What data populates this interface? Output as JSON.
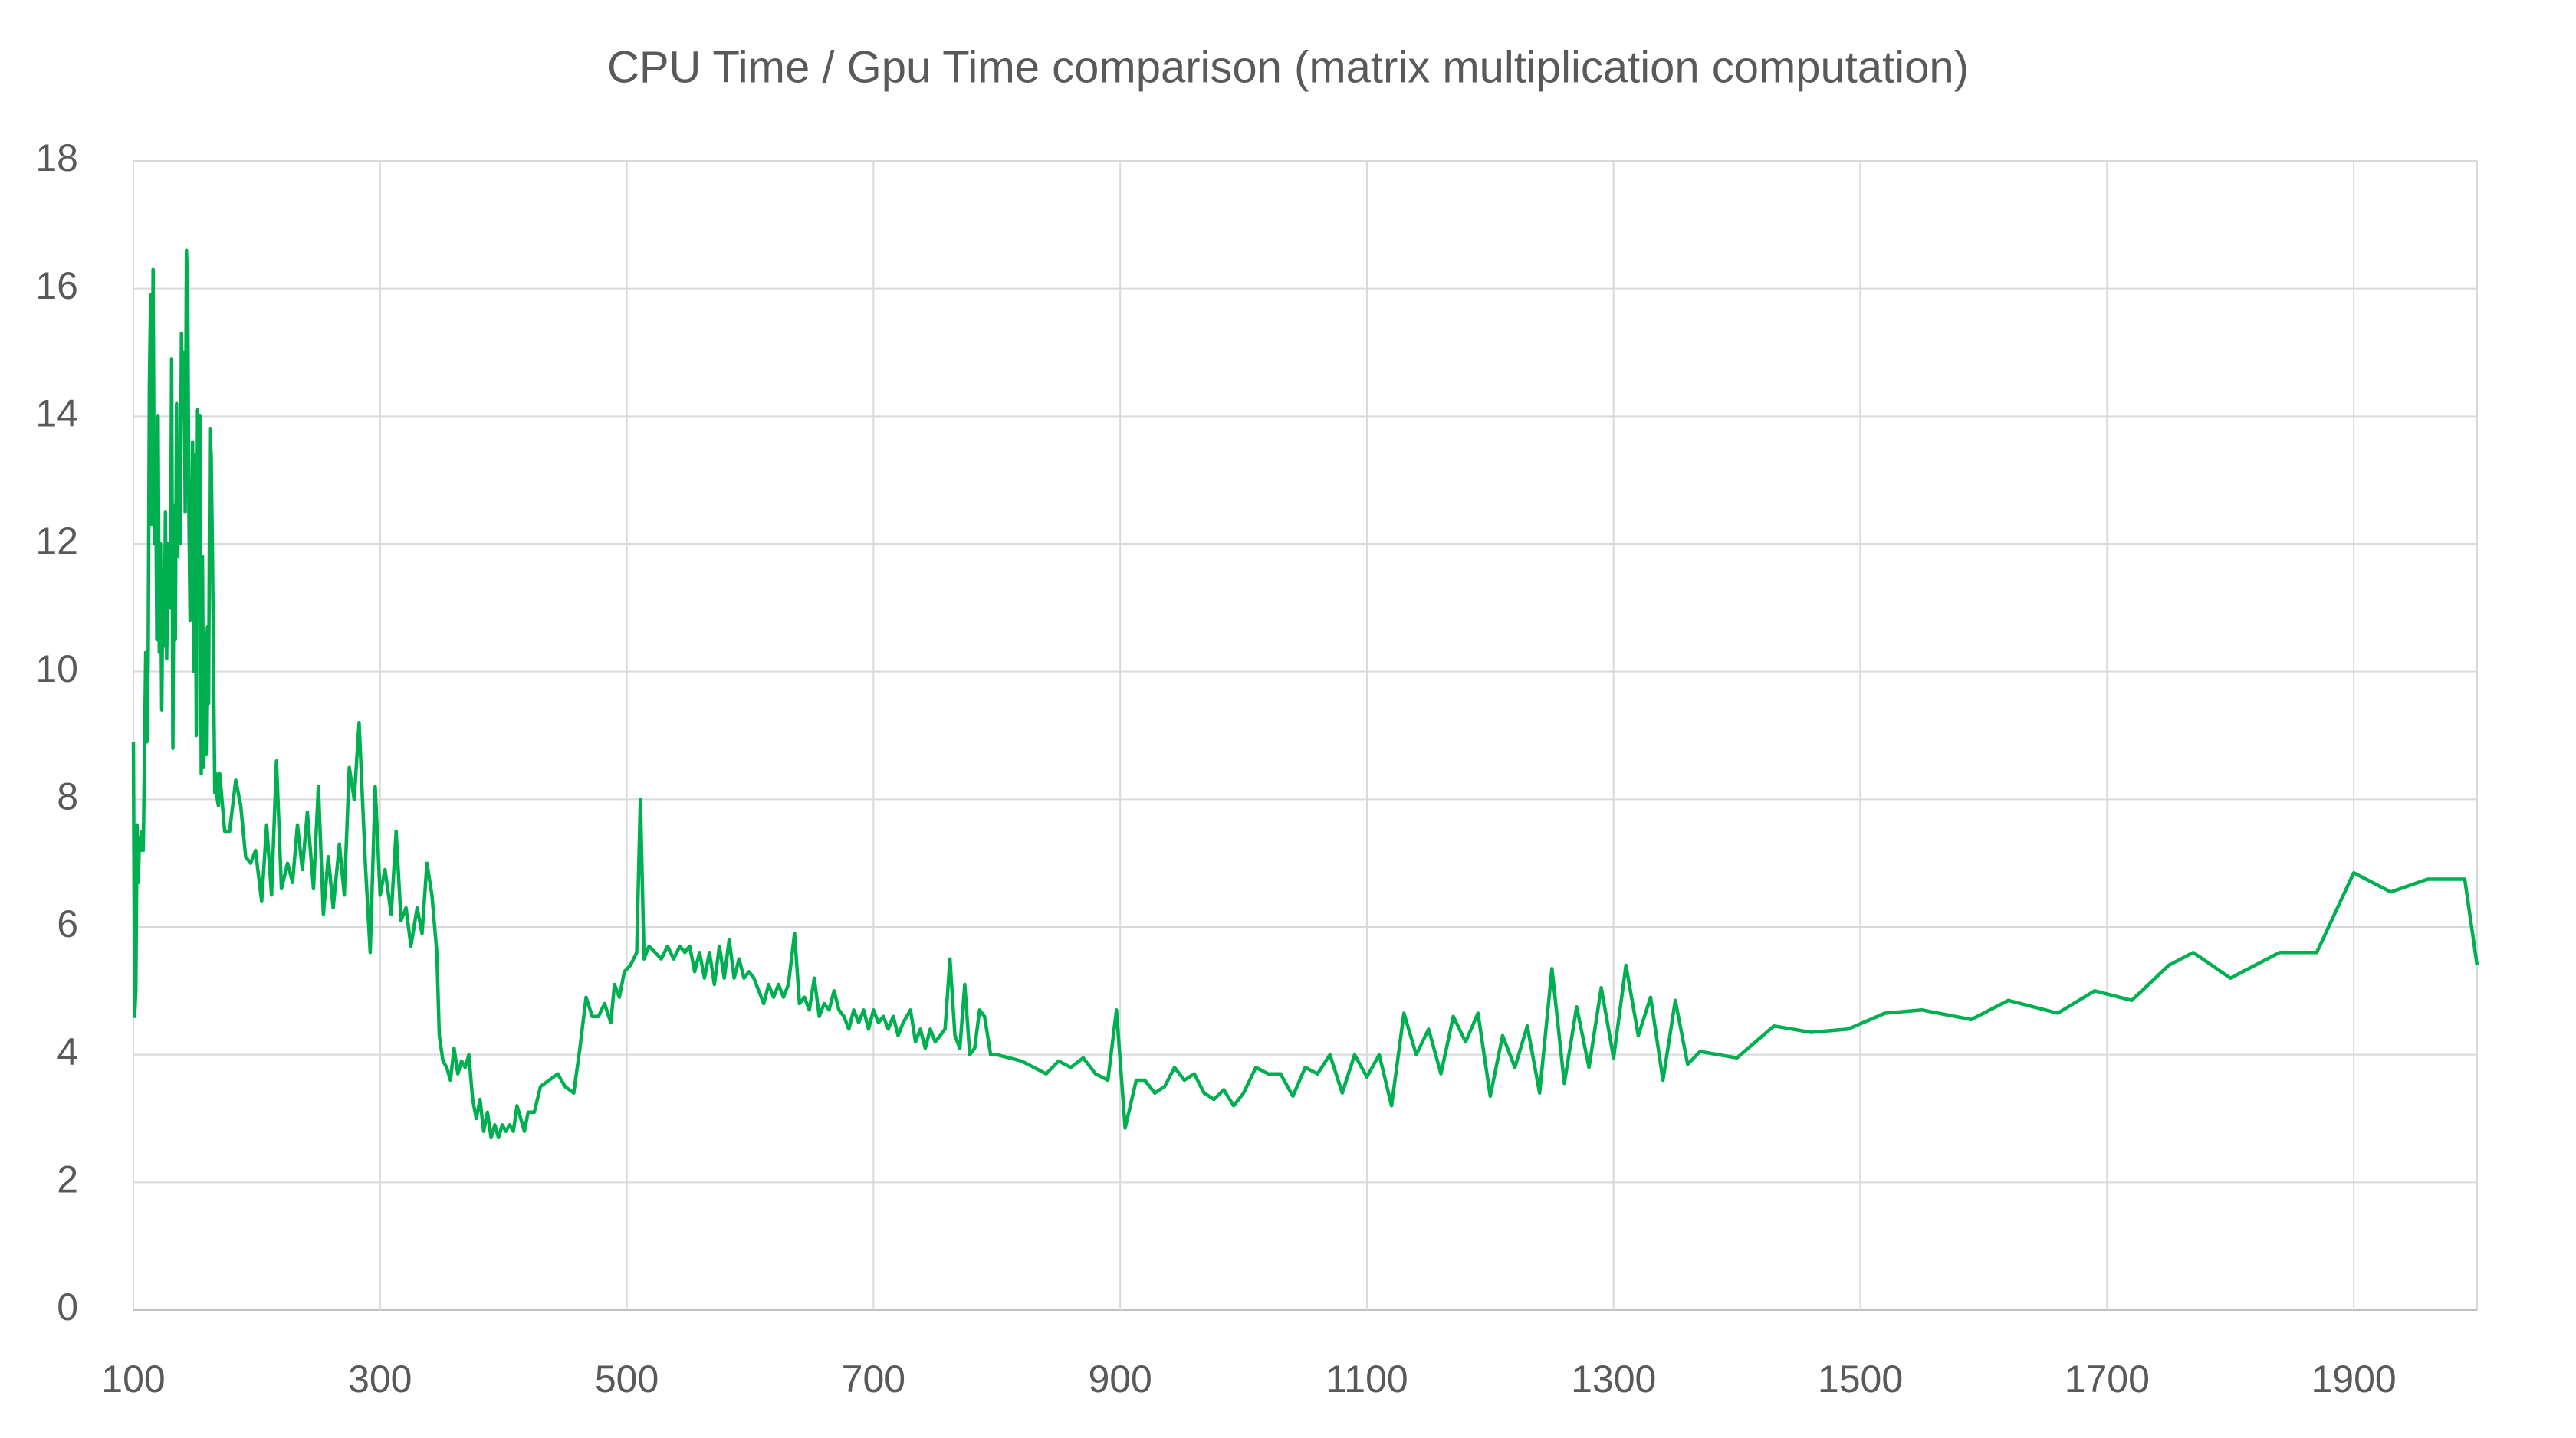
{
  "chart_data": {
    "type": "line",
    "title": "CPU Time / Gpu Time comparison (matrix multiplication computation)",
    "color": "#00b050",
    "grid": true,
    "xlim": [
      100,
      2000
    ],
    "xticks": [
      100,
      300,
      500,
      700,
      900,
      1100,
      1300,
      1500,
      1700,
      1900
    ],
    "ylim": [
      0,
      18
    ],
    "yticks": [
      0,
      2,
      4,
      6,
      8,
      10,
      12,
      14,
      16,
      18
    ],
    "x": [
      100,
      101,
      102,
      103,
      104,
      105,
      106,
      107,
      108,
      110,
      111,
      112,
      113,
      114,
      115,
      116,
      117,
      118,
      119,
      120,
      121,
      122,
      123,
      124,
      125,
      126,
      127,
      128,
      130,
      131,
      132,
      133,
      134,
      135,
      136,
      137,
      138,
      139,
      140,
      141,
      142,
      143,
      144,
      145,
      146,
      147,
      148,
      149,
      150,
      151,
      152,
      153,
      154,
      155,
      156,
      157,
      158,
      159,
      160,
      161,
      162,
      163,
      164,
      165,
      166,
      167,
      168,
      169,
      170,
      174,
      178,
      183,
      187,
      191,
      195,
      199,
      204,
      208,
      212,
      216,
      220,
      225,
      229,
      233,
      237,
      241,
      246,
      250,
      254,
      258,
      262,
      267,
      271,
      275,
      279,
      283,
      288,
      292,
      296,
      300,
      304,
      309,
      313,
      317,
      321,
      325,
      330,
      334,
      338,
      342,
      346,
      348,
      351,
      354,
      357,
      360,
      363,
      366,
      369,
      372,
      375,
      378,
      381,
      384,
      387,
      390,
      393,
      396,
      399,
      402,
      405,
      408,
      411,
      414,
      417,
      420,
      425,
      430,
      437,
      444,
      450,
      457,
      462,
      467,
      472,
      477,
      482,
      487,
      490,
      494,
      498,
      503,
      508,
      511,
      514,
      518,
      523,
      528,
      533,
      538,
      543,
      547,
      551,
      555,
      559,
      563,
      567,
      571,
      575,
      579,
      583,
      587,
      591,
      595,
      599,
      603,
      607,
      611,
      615,
      619,
      623,
      627,
      631,
      636,
      640,
      644,
      648,
      652,
      656,
      660,
      664,
      668,
      672,
      676,
      680,
      684,
      688,
      692,
      696,
      700,
      704,
      708,
      712,
      716,
      720,
      724,
      730,
      734,
      738,
      742,
      746,
      750,
      754,
      758,
      762,
      766,
      770,
      774,
      778,
      782,
      786,
      790,
      795,
      800,
      810,
      820,
      830,
      840,
      850,
      860,
      870,
      880,
      890,
      897,
      904,
      913,
      920,
      928,
      936,
      944,
      952,
      960,
      968,
      976,
      984,
      992,
      1000,
      1010,
      1020,
      1030,
      1040,
      1050,
      1060,
      1070,
      1080,
      1090,
      1100,
      1110,
      1120,
      1130,
      1140,
      1150,
      1160,
      1170,
      1180,
      1190,
      1200,
      1210,
      1220,
      1230,
      1240,
      1250,
      1260,
      1270,
      1280,
      1290,
      1300,
      1310,
      1320,
      1330,
      1340,
      1350,
      1360,
      1370,
      1400,
      1430,
      1460,
      1490,
      1520,
      1550,
      1590,
      1620,
      1660,
      1690,
      1720,
      1750,
      1770,
      1800,
      1840,
      1870,
      1900,
      1930,
      1960,
      1990,
      2000
    ],
    "values": [
      8.9,
      4.6,
      5.0,
      7.6,
      6.7,
      7.4,
      7.2,
      7.5,
      7.2,
      10.3,
      8.9,
      10.2,
      14.5,
      15.9,
      12.3,
      16.3,
      12.0,
      13.3,
      10.5,
      14.0,
      10.3,
      12.0,
      9.4,
      11.6,
      10.4,
      12.5,
      10.2,
      12.0,
      11.0,
      14.9,
      8.8,
      12.6,
      10.5,
      14.2,
      11.8,
      13.4,
      12.0,
      15.3,
      14.0,
      15.0,
      12.5,
      16.6,
      16.0,
      12.5,
      10.8,
      11.5,
      13.6,
      10.0,
      13.4,
      9.0,
      14.1,
      11.2,
      14.0,
      8.4,
      11.8,
      8.5,
      10.6,
      8.7,
      10.7,
      9.5,
      13.8,
      13.4,
      12.0,
      10.0,
      8.1,
      8.4,
      8.0,
      7.9,
      8.4,
      7.5,
      7.5,
      8.3,
      7.9,
      7.1,
      7.0,
      7.2,
      6.4,
      7.6,
      6.5,
      8.6,
      6.6,
      7.0,
      6.7,
      7.6,
      6.9,
      7.8,
      6.6,
      8.2,
      6.2,
      7.1,
      6.3,
      7.3,
      6.5,
      8.5,
      8.0,
      9.2,
      7.0,
      5.6,
      8.2,
      6.5,
      6.9,
      6.2,
      7.5,
      6.1,
      6.3,
      5.7,
      6.3,
      5.9,
      7.0,
      6.5,
      5.6,
      4.3,
      3.9,
      3.8,
      3.6,
      4.1,
      3.7,
      3.9,
      3.8,
      4.0,
      3.3,
      3.0,
      3.3,
      2.8,
      3.1,
      2.7,
      2.9,
      2.7,
      2.9,
      2.8,
      2.9,
      2.8,
      3.2,
      3.0,
      2.8,
      3.1,
      3.1,
      3.5,
      3.6,
      3.7,
      3.5,
      3.4,
      4.1,
      4.9,
      4.6,
      4.6,
      4.8,
      4.5,
      5.1,
      4.9,
      5.3,
      5.4,
      5.6,
      8.0,
      5.5,
      5.7,
      5.6,
      5.5,
      5.7,
      5.5,
      5.7,
      5.6,
      5.7,
      5.3,
      5.6,
      5.2,
      5.6,
      5.1,
      5.7,
      5.2,
      5.8,
      5.2,
      5.5,
      5.2,
      5.3,
      5.2,
      5.0,
      4.8,
      5.1,
      4.9,
      5.1,
      4.9,
      5.1,
      5.9,
      4.8,
      4.9,
      4.7,
      5.2,
      4.6,
      4.8,
      4.7,
      5.0,
      4.7,
      4.6,
      4.4,
      4.7,
      4.5,
      4.7,
      4.4,
      4.7,
      4.5,
      4.6,
      4.4,
      4.6,
      4.3,
      4.5,
      4.7,
      4.2,
      4.4,
      4.1,
      4.4,
      4.2,
      4.3,
      4.4,
      5.5,
      4.3,
      4.1,
      5.1,
      4.0,
      4.1,
      4.7,
      4.6,
      4.0,
      4.0,
      3.95,
      3.9,
      3.8,
      3.7,
      3.9,
      3.8,
      3.95,
      3.7,
      3.6,
      4.7,
      2.85,
      3.6,
      3.6,
      3.4,
      3.5,
      3.8,
      3.6,
      3.7,
      3.4,
      3.3,
      3.45,
      3.2,
      3.4,
      3.8,
      3.7,
      3.7,
      3.35,
      3.8,
      3.7,
      4.0,
      3.4,
      4.0,
      3.65,
      4.0,
      3.2,
      4.65,
      4.0,
      4.4,
      3.7,
      4.6,
      4.2,
      4.65,
      3.35,
      4.3,
      3.8,
      4.45,
      3.4,
      5.35,
      3.55,
      4.75,
      3.8,
      5.05,
      3.95,
      5.4,
      4.3,
      4.9,
      3.6,
      4.85,
      3.85,
      4.05,
      3.95,
      4.45,
      4.35,
      4.4,
      4.65,
      4.7,
      4.55,
      4.85,
      4.65,
      5.0,
      4.85,
      5.4,
      5.6,
      5.2,
      5.6,
      5.6,
      6.85,
      6.55,
      6.75,
      6.75,
      5.4
    ]
  }
}
